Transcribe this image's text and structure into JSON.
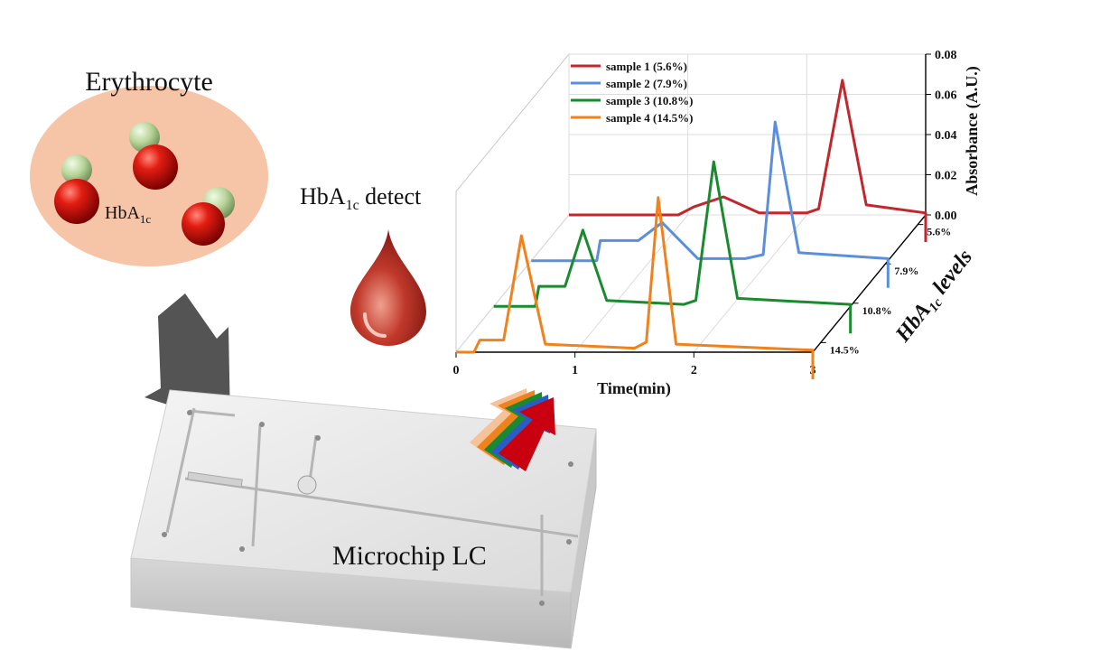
{
  "labels": {
    "erythrocyte": "Erythrocyte",
    "hba_prefix": "HbA",
    "hba_sub": "1c",
    "detect_suffix": " detect",
    "microchip": "Microchip LC",
    "levels_suffix": " levels"
  },
  "chart_data": {
    "type": "line",
    "xlabel": "Time(min)",
    "ylabel": "Absorbance (A.U.)",
    "zlabel": "HbA1c levels",
    "xlim": [
      0,
      3
    ],
    "ylim": [
      0,
      0.08
    ],
    "x_ticks": [
      "0",
      "1",
      "2",
      "3"
    ],
    "y_ticks": [
      "0.00",
      "0.02",
      "0.04",
      "0.06",
      "0.08"
    ],
    "z_ticks": [
      "5.6%",
      "7.9%",
      "10.8%",
      "14.5%"
    ],
    "series": [
      {
        "name": "sample 1 (5.6%)",
        "color": "#c0282d",
        "x": [
          0,
          0.88,
          0.92,
          1.05,
          1.3,
          1.6,
          2.0,
          2.1,
          2.3,
          2.5,
          3.0
        ],
        "y": [
          0.0,
          0.0,
          0.0,
          0.004,
          0.009,
          0.001,
          0.001,
          0.003,
          0.067,
          0.005,
          0.001
        ]
      },
      {
        "name": "sample 2 (7.9%)",
        "color": "#5b8fdc",
        "x": [
          0,
          0.55,
          0.58,
          0.9,
          1.1,
          1.4,
          1.8,
          1.95,
          2.05,
          2.25,
          3.0
        ],
        "y": [
          0.0,
          0.0,
          0.01,
          0.01,
          0.019,
          0.001,
          0.001,
          0.003,
          0.069,
          0.004,
          0.001
        ]
      },
      {
        "name": "sample 3 (10.8%)",
        "color": "#1a8a2e",
        "x": [
          0,
          0.35,
          0.38,
          0.6,
          0.75,
          0.95,
          1.6,
          1.7,
          1.85,
          2.05,
          3.0
        ],
        "y": [
          0.0,
          0.0,
          0.01,
          0.01,
          0.038,
          0.003,
          0.001,
          0.003,
          0.072,
          0.004,
          0.001
        ]
      },
      {
        "name": "sample 4 (14.5%)",
        "color": "#f0821e",
        "x": [
          0,
          0.15,
          0.2,
          0.4,
          0.55,
          0.75,
          1.5,
          1.6,
          1.7,
          1.85,
          3.0
        ],
        "y": [
          0.0,
          0.0,
          0.006,
          0.006,
          0.058,
          0.004,
          0.002,
          0.005,
          0.077,
          0.004,
          0.001
        ]
      }
    ]
  }
}
